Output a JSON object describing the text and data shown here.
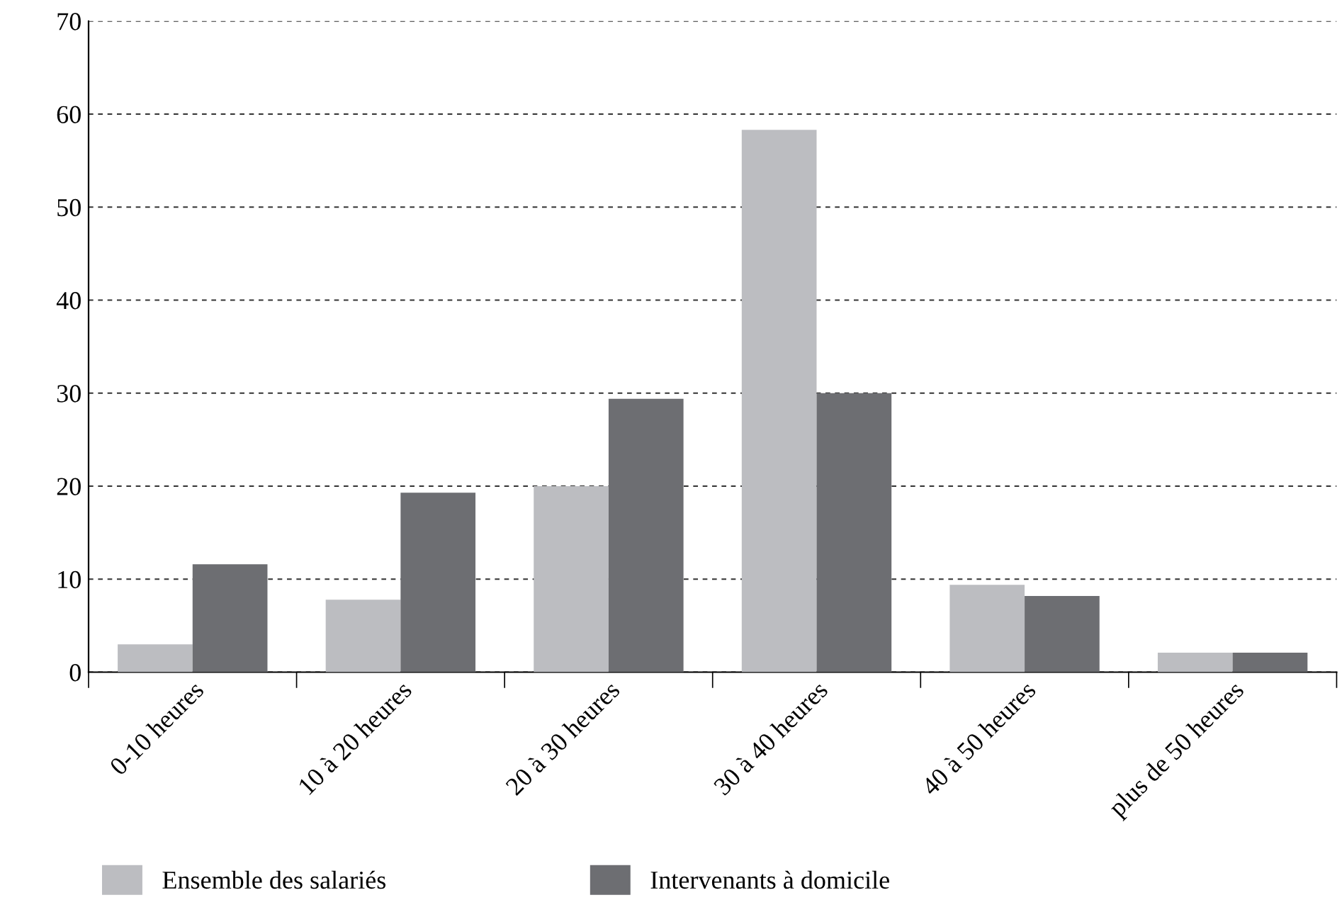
{
  "chart_data": {
    "type": "bar",
    "categories": [
      "0-10 heures",
      "10 à 20 heures",
      "20 à 30 heures",
      "30 à 40 heures",
      "40 à 50 heures",
      "plus de 50 heures"
    ],
    "series": [
      {
        "name": "Ensemble des salariés",
        "color": "#bcbdc1",
        "values": [
          3.0,
          7.8,
          20.0,
          58.3,
          9.4,
          2.1
        ]
      },
      {
        "name": "Intervenants à domicile",
        "color": "#6d6e72",
        "values": [
          11.6,
          19.3,
          29.4,
          30.0,
          8.2,
          2.1
        ]
      }
    ],
    "ylim": [
      0,
      70
    ],
    "yticks": [
      0,
      10,
      20,
      30,
      40,
      50,
      60,
      70
    ],
    "grid": "y",
    "legend": "bottom"
  }
}
